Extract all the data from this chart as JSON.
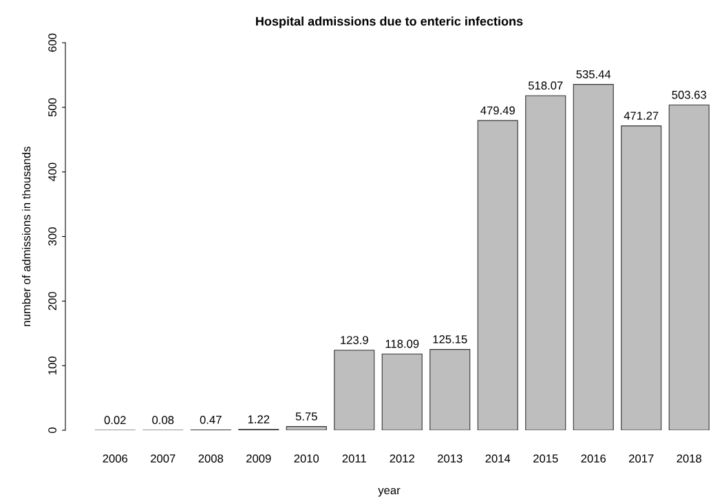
{
  "chart_data": {
    "type": "bar",
    "title": "Hospital admissions due to enteric infections",
    "xlabel": "year",
    "ylabel": "number of admissions in thousands",
    "categories": [
      "2006",
      "2007",
      "2008",
      "2009",
      "2010",
      "2011",
      "2012",
      "2013",
      "2014",
      "2015",
      "2016",
      "2017",
      "2018"
    ],
    "values": [
      0.02,
      0.08,
      0.47,
      1.22,
      5.75,
      123.9,
      118.09,
      125.15,
      479.49,
      518.07,
      535.44,
      471.27,
      503.63
    ],
    "color": "#bebebe",
    "ylim": [
      0,
      600
    ],
    "yticks": [
      0,
      100,
      200,
      300,
      400,
      500,
      600
    ],
    "data_labels": true,
    "grid": false,
    "legend": false
  }
}
